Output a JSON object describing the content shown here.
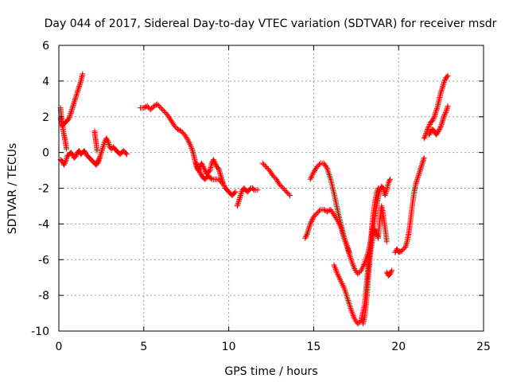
{
  "chart_data": {
    "type": "scatter",
    "title": "Day 044 of 2017, Sidereal Day-to-day VTEC variation (SDTVAR) for receiver msdr",
    "xlabel": "GPS time / hours",
    "ylabel": "SDTVAR / TECUs",
    "xlim": [
      0,
      25
    ],
    "ylim": [
      -10,
      6
    ],
    "xticks": [
      "0",
      "5",
      "10",
      "15",
      "20",
      "25"
    ],
    "yticks": [
      "-10",
      "-8",
      "-6",
      "-4",
      "-2",
      "0",
      "2",
      "4",
      "6"
    ],
    "grid": true,
    "marker": "+",
    "color": "#ff0000",
    "tracks": [
      [
        [
          0.1,
          1.9
        ],
        [
          0.2,
          1.5
        ],
        [
          0.3,
          1.6
        ],
        [
          0.4,
          1.7
        ],
        [
          0.5,
          1.8
        ],
        [
          0.6,
          1.9
        ],
        [
          0.7,
          2.2
        ],
        [
          0.8,
          2.5
        ],
        [
          0.9,
          2.8
        ],
        [
          1.0,
          3.1
        ],
        [
          1.1,
          3.4
        ],
        [
          1.2,
          3.7
        ],
        [
          1.3,
          4.0
        ],
        [
          1.4,
          4.4
        ]
      ],
      [
        [
          0.1,
          2.5
        ],
        [
          0.15,
          2.0
        ],
        [
          0.2,
          1.6
        ],
        [
          0.25,
          1.3
        ],
        [
          0.3,
          1.0
        ],
        [
          0.35,
          0.8
        ],
        [
          0.4,
          0.5
        ],
        [
          0.45,
          0.2
        ]
      ],
      [
        [
          0.1,
          -0.4
        ],
        [
          0.2,
          -0.5
        ],
        [
          0.3,
          -0.7
        ],
        [
          0.4,
          -0.5
        ],
        [
          0.5,
          -0.2
        ],
        [
          0.6,
          -0.1
        ],
        [
          0.7,
          0.0
        ],
        [
          0.8,
          -0.1
        ],
        [
          0.9,
          -0.3
        ],
        [
          1.0,
          -0.2
        ],
        [
          1.1,
          0.0
        ],
        [
          1.2,
          0.1
        ],
        [
          1.3,
          -0.1
        ],
        [
          1.4,
          0.0
        ],
        [
          1.5,
          0.1
        ],
        [
          1.6,
          -0.1
        ],
        [
          1.7,
          -0.2
        ],
        [
          1.8,
          -0.3
        ],
        [
          1.9,
          -0.4
        ],
        [
          2.0,
          -0.5
        ],
        [
          2.1,
          -0.6
        ],
        [
          2.2,
          -0.7
        ],
        [
          2.3,
          -0.5
        ],
        [
          2.4,
          -0.3
        ]
      ],
      [
        [
          2.1,
          1.2
        ],
        [
          2.15,
          0.8
        ],
        [
          2.2,
          0.5
        ],
        [
          2.25,
          0.1
        ]
      ],
      [
        [
          2.3,
          -0.6
        ],
        [
          2.4,
          -0.3
        ],
        [
          2.5,
          0.0
        ],
        [
          2.6,
          0.3
        ],
        [
          2.7,
          0.6
        ],
        [
          2.8,
          0.8
        ],
        [
          2.9,
          0.6
        ],
        [
          3.0,
          0.3
        ],
        [
          3.1,
          0.2
        ],
        [
          3.2,
          0.3
        ],
        [
          3.3,
          0.2
        ],
        [
          3.4,
          0.1
        ],
        [
          3.5,
          0.0
        ],
        [
          3.6,
          -0.1
        ],
        [
          3.7,
          0.0
        ],
        [
          3.8,
          0.1
        ],
        [
          3.9,
          0.0
        ],
        [
          4.0,
          -0.1
        ]
      ],
      [
        [
          4.8,
          2.5
        ],
        [
          5.0,
          2.5
        ],
        [
          5.2,
          2.6
        ],
        [
          5.4,
          2.4
        ],
        [
          5.6,
          2.6
        ],
        [
          5.8,
          2.7
        ],
        [
          6.0,
          2.5
        ],
        [
          6.2,
          2.3
        ],
        [
          6.4,
          2.1
        ],
        [
          6.6,
          1.8
        ],
        [
          6.8,
          1.5
        ],
        [
          7.0,
          1.3
        ],
        [
          7.2,
          1.2
        ],
        [
          7.4,
          1.0
        ],
        [
          7.6,
          0.7
        ],
        [
          7.8,
          0.3
        ],
        [
          7.9,
          0.0
        ],
        [
          8.0,
          -0.4
        ],
        [
          8.1,
          -0.8
        ],
        [
          8.2,
          -1.0
        ],
        [
          8.3,
          -0.8
        ],
        [
          8.4,
          -0.6
        ],
        [
          8.5,
          -0.8
        ],
        [
          8.6,
          -1.0
        ],
        [
          8.7,
          -1.2
        ],
        [
          8.8,
          -1.1
        ],
        [
          8.9,
          -1.0
        ],
        [
          9.0,
          -0.6
        ],
        [
          9.1,
          -0.4
        ],
        [
          9.2,
          -0.6
        ],
        [
          9.3,
          -0.8
        ],
        [
          9.4,
          -0.9
        ],
        [
          9.5,
          -1.2
        ],
        [
          9.6,
          -1.5
        ],
        [
          9.7,
          -1.8
        ],
        [
          9.8,
          -2.0
        ],
        [
          9.9,
          -2.1
        ],
        [
          10.0,
          -2.2
        ],
        [
          10.1,
          -2.3
        ],
        [
          10.2,
          -2.4
        ],
        [
          10.3,
          -2.3
        ],
        [
          10.4,
          -2.2
        ]
      ],
      [
        [
          8.1,
          -0.6
        ],
        [
          8.2,
          -0.9
        ],
        [
          8.3,
          -1.1
        ],
        [
          8.4,
          -1.3
        ],
        [
          8.5,
          -1.4
        ],
        [
          8.6,
          -1.5
        ],
        [
          8.7,
          -1.4
        ],
        [
          8.8,
          -1.3
        ],
        [
          8.9,
          -1.4
        ],
        [
          9.0,
          -1.5
        ],
        [
          9.2,
          -1.5
        ],
        [
          9.4,
          -1.5
        ],
        [
          9.6,
          -1.7
        ]
      ],
      [
        [
          10.5,
          -3.0
        ],
        [
          10.6,
          -2.7
        ],
        [
          10.7,
          -2.4
        ],
        [
          10.8,
          -2.1
        ],
        [
          10.9,
          -2.0
        ],
        [
          11.0,
          -2.1
        ],
        [
          11.1,
          -2.2
        ],
        [
          11.2,
          -2.1
        ],
        [
          11.3,
          -2.0
        ],
        [
          11.4,
          -2.0
        ],
        [
          11.5,
          -2.1
        ],
        [
          11.7,
          -2.1
        ]
      ],
      [
        [
          12.0,
          -0.6
        ],
        [
          12.2,
          -0.8
        ],
        [
          12.4,
          -1.0
        ],
        [
          12.6,
          -1.3
        ],
        [
          12.8,
          -1.5
        ],
        [
          13.0,
          -1.8
        ],
        [
          13.2,
          -2.0
        ],
        [
          13.4,
          -2.2
        ],
        [
          13.6,
          -2.4
        ]
      ],
      [
        [
          14.5,
          -4.8
        ],
        [
          14.6,
          -4.6
        ],
        [
          14.7,
          -4.3
        ],
        [
          14.8,
          -4.0
        ],
        [
          14.9,
          -3.8
        ],
        [
          15.0,
          -3.6
        ],
        [
          15.2,
          -3.4
        ],
        [
          15.4,
          -3.2
        ],
        [
          15.6,
          -3.2
        ],
        [
          15.8,
          -3.3
        ],
        [
          16.0,
          -3.2
        ],
        [
          16.2,
          -3.5
        ],
        [
          16.4,
          -3.8
        ],
        [
          16.6,
          -4.2
        ],
        [
          16.8,
          -4.8
        ],
        [
          17.0,
          -5.4
        ],
        [
          17.2,
          -6.0
        ],
        [
          17.4,
          -6.5
        ],
        [
          17.6,
          -6.8
        ],
        [
          17.8,
          -6.6
        ],
        [
          18.0,
          -6.2
        ],
        [
          18.2,
          -5.6
        ],
        [
          18.4,
          -4.8
        ],
        [
          18.5,
          -4.2
        ],
        [
          18.6,
          -3.6
        ],
        [
          18.7,
          -3.0
        ],
        [
          18.8,
          -2.5
        ],
        [
          18.9,
          -2.1
        ],
        [
          19.0,
          -1.9
        ],
        [
          19.1,
          -2.0
        ],
        [
          19.2,
          -2.4
        ],
        [
          19.3,
          -2.1
        ],
        [
          19.4,
          -1.7
        ],
        [
          19.5,
          -1.5
        ]
      ],
      [
        [
          14.8,
          -1.5
        ],
        [
          15.0,
          -1.1
        ],
        [
          15.2,
          -0.8
        ],
        [
          15.4,
          -0.6
        ],
        [
          15.6,
          -0.6
        ],
        [
          15.8,
          -0.9
        ],
        [
          16.0,
          -1.5
        ],
        [
          16.2,
          -2.3
        ],
        [
          16.4,
          -3.2
        ],
        [
          16.6,
          -4.0
        ],
        [
          16.8,
          -4.8
        ],
        [
          17.0,
          -5.3
        ],
        [
          17.1,
          -5.6
        ]
      ],
      [
        [
          16.2,
          -6.3
        ],
        [
          16.4,
          -6.8
        ],
        [
          16.6,
          -7.2
        ],
        [
          16.8,
          -7.6
        ],
        [
          17.0,
          -8.2
        ],
        [
          17.2,
          -8.8
        ],
        [
          17.4,
          -9.3
        ],
        [
          17.6,
          -9.6
        ],
        [
          17.8,
          -9.4
        ],
        [
          18.0,
          -8.5
        ],
        [
          18.1,
          -7.5
        ],
        [
          18.2,
          -6.5
        ],
        [
          18.3,
          -5.5
        ],
        [
          18.4,
          -4.5
        ],
        [
          18.5,
          -3.5
        ],
        [
          18.6,
          -2.8
        ],
        [
          18.7,
          -2.3
        ],
        [
          18.8,
          -2.0
        ]
      ],
      [
        [
          17.9,
          -9.6
        ],
        [
          18.0,
          -9.2
        ],
        [
          18.1,
          -8.4
        ],
        [
          18.2,
          -7.2
        ],
        [
          18.3,
          -6.0
        ],
        [
          18.4,
          -5.2
        ],
        [
          18.5,
          -4.6
        ],
        [
          18.6,
          -4.3
        ],
        [
          18.7,
          -4.5
        ],
        [
          18.8,
          -4.8
        ],
        [
          18.9,
          -3.8
        ],
        [
          19.0,
          -3.0
        ],
        [
          19.1,
          -3.5
        ],
        [
          19.2,
          -4.2
        ],
        [
          19.3,
          -5.0
        ]
      ],
      [
        [
          19.3,
          -6.7
        ],
        [
          19.4,
          -6.9
        ],
        [
          19.5,
          -6.8
        ],
        [
          19.6,
          -6.6
        ]
      ],
      [
        [
          19.8,
          -5.6
        ],
        [
          19.9,
          -5.4
        ],
        [
          20.0,
          -5.6
        ],
        [
          20.2,
          -5.5
        ],
        [
          20.4,
          -5.3
        ],
        [
          20.5,
          -5.0
        ],
        [
          20.6,
          -4.5
        ],
        [
          20.7,
          -3.8
        ],
        [
          20.8,
          -3.0
        ],
        [
          20.9,
          -2.3
        ],
        [
          21.0,
          -1.8
        ],
        [
          21.1,
          -1.5
        ],
        [
          21.2,
          -1.2
        ],
        [
          21.3,
          -0.9
        ],
        [
          21.4,
          -0.6
        ],
        [
          21.5,
          -0.3
        ]
      ],
      [
        [
          21.5,
          0.8
        ],
        [
          21.6,
          1.0
        ],
        [
          21.7,
          1.3
        ],
        [
          21.8,
          1.5
        ],
        [
          21.9,
          1.7
        ],
        [
          22.0,
          1.8
        ],
        [
          22.1,
          2.0
        ],
        [
          22.2,
          2.3
        ],
        [
          22.3,
          2.6
        ],
        [
          22.4,
          3.0
        ],
        [
          22.5,
          3.4
        ],
        [
          22.6,
          3.7
        ],
        [
          22.7,
          4.0
        ],
        [
          22.8,
          4.2
        ],
        [
          22.9,
          4.3
        ]
      ],
      [
        [
          21.8,
          1.0
        ],
        [
          21.9,
          1.2
        ],
        [
          22.0,
          1.3
        ],
        [
          22.1,
          1.2
        ],
        [
          22.2,
          1.0
        ],
        [
          22.3,
          1.1
        ],
        [
          22.4,
          1.3
        ],
        [
          22.5,
          1.5
        ],
        [
          22.6,
          1.8
        ],
        [
          22.7,
          2.1
        ],
        [
          22.8,
          2.3
        ],
        [
          22.9,
          2.6
        ]
      ]
    ]
  }
}
